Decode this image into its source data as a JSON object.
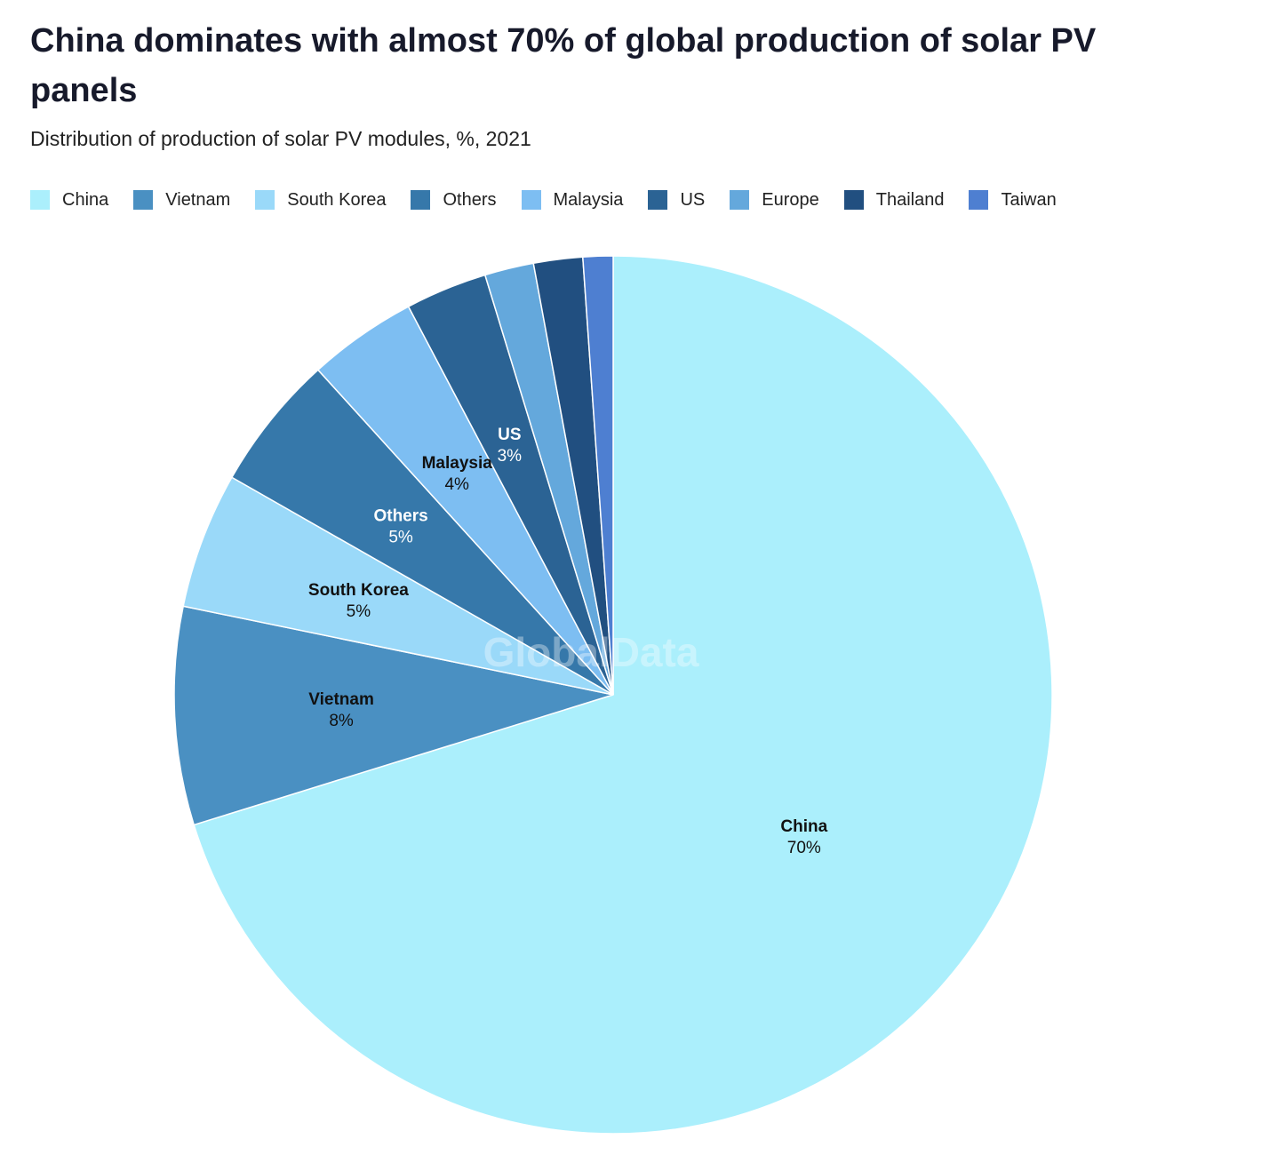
{
  "chart_data": {
    "type": "pie",
    "title": "China dominates with almost 70% of global production of solar PV panels",
    "subtitle": "Distribution of production of solar PV modules, %, 2021",
    "legend_position": "top-left",
    "watermark": "GlobalData",
    "slices": [
      {
        "name": "China",
        "value": 70,
        "label": "70%",
        "color": "#abeffc",
        "label_color": "#111111"
      },
      {
        "name": "Vietnam",
        "value": 8,
        "label": "8%",
        "color": "#4a90c2",
        "label_color": "#111111"
      },
      {
        "name": "South Korea",
        "value": 5,
        "label": "5%",
        "color": "#9ad9f9",
        "label_color": "#111111"
      },
      {
        "name": "Others",
        "value": 5,
        "label": "5%",
        "color": "#3678aa",
        "label_color": "#ffffff"
      },
      {
        "name": "Malaysia",
        "value": 4,
        "label": "4%",
        "color": "#7dbef2",
        "label_color": "#111111"
      },
      {
        "name": "US",
        "value": 3,
        "label": "3%",
        "color": "#2b6394",
        "label_color": "#ffffff"
      },
      {
        "name": "Europe",
        "value": 1.8,
        "label": "",
        "color": "#64a8dc",
        "label_color": "#111111"
      },
      {
        "name": "Thailand",
        "value": 1.8,
        "label": "",
        "color": "#214f80",
        "label_color": "#ffffff"
      },
      {
        "name": "Taiwan",
        "value": 1.1,
        "label": "",
        "color": "#4e7fd1",
        "label_color": "#ffffff"
      }
    ]
  }
}
